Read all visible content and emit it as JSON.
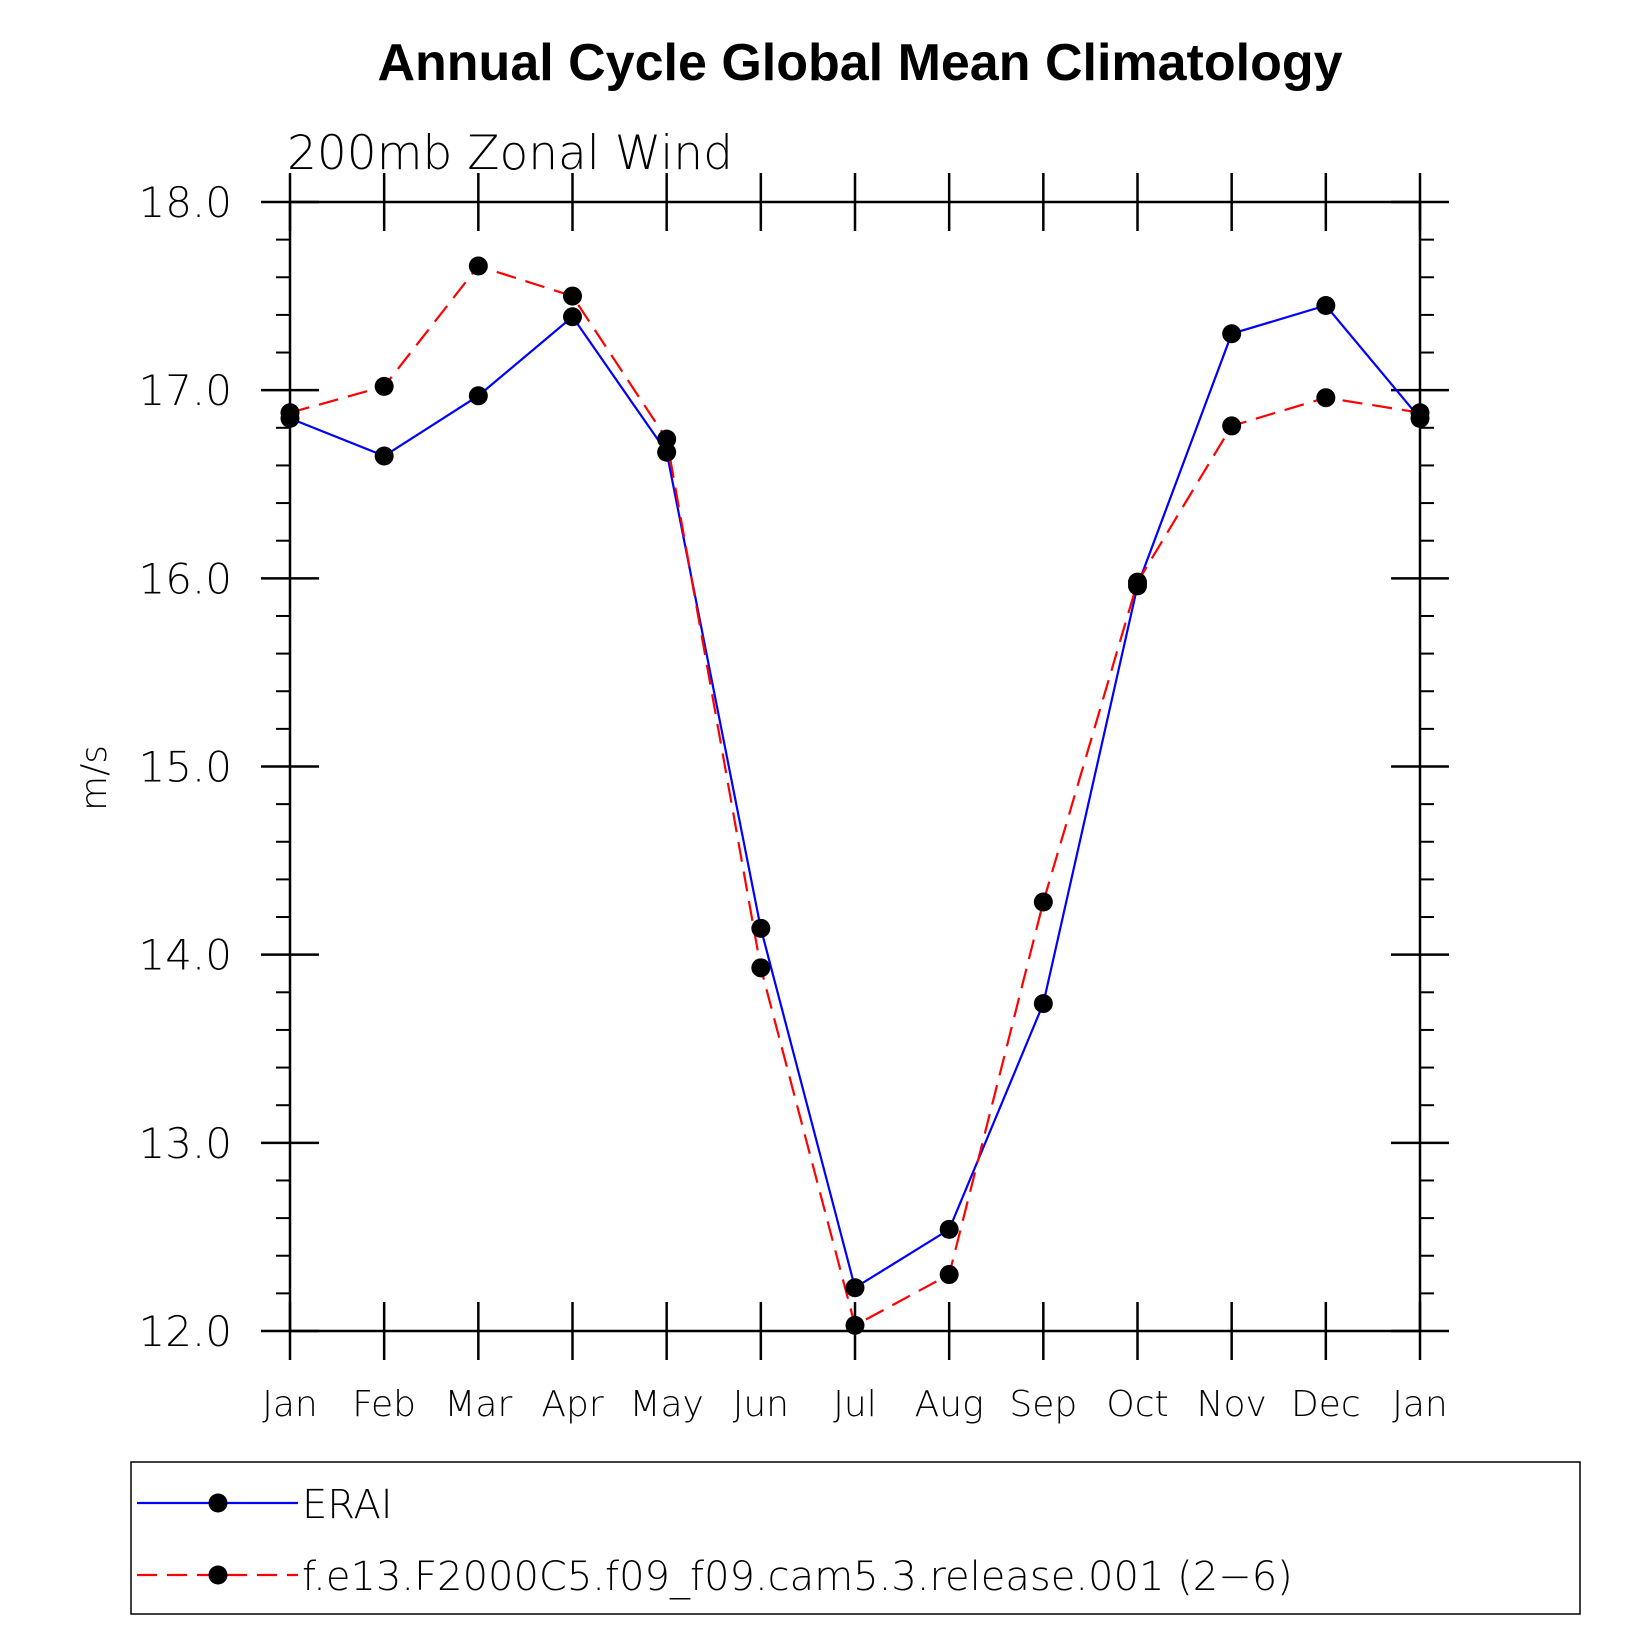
{
  "chart_data": {
    "type": "line",
    "title": "Annual Cycle Global Mean Climatology",
    "subtitle": "200mb Zonal Wind",
    "ylabel": "m/s",
    "xlabel": "",
    "ylim": [
      12.0,
      18.0
    ],
    "yticks": [
      "12.0",
      "13.0",
      "14.0",
      "15.0",
      "16.0",
      "17.0",
      "18.0"
    ],
    "categories": [
      "Jan",
      "Feb",
      "Mar",
      "Apr",
      "May",
      "Jun",
      "Jul",
      "Aug",
      "Sep",
      "Oct",
      "Nov",
      "Dec",
      "Jan"
    ],
    "grid": false,
    "legend_position": "bottom",
    "series": [
      {
        "name": "ERAI",
        "color": "#0000ff",
        "dash": "solid",
        "marker": "filled-circle",
        "values": [
          16.85,
          16.65,
          16.97,
          17.39,
          16.67,
          14.14,
          12.23,
          12.54,
          13.74,
          15.96,
          17.3,
          17.45,
          16.85
        ]
      },
      {
        "name": "f.e13.F2000C5.f09_f09.cam5.3.release.001 (2−6)",
        "color": "#ff0000",
        "dash": "dashed",
        "marker": "filled-circle",
        "values": [
          16.88,
          17.02,
          17.66,
          17.5,
          16.74,
          13.93,
          12.03,
          12.3,
          14.28,
          15.98,
          16.81,
          16.96,
          16.88
        ]
      }
    ]
  }
}
